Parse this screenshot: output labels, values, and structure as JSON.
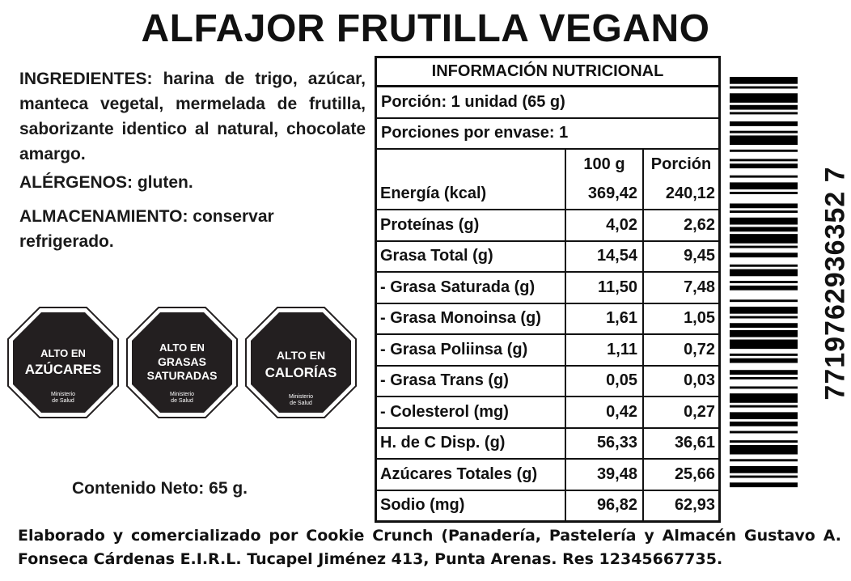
{
  "product_title": "ALFAJOR FRUTILLA VEGANO",
  "ingredients": {
    "label": "INGREDIENTES:",
    "text": "harina de trigo, azúcar, manteca vegetal, mermelada de frutilla, saborizante identico al natural, chocolate amargo."
  },
  "allergens": {
    "label": "ALÉRGENOS:",
    "text": "gluten."
  },
  "storage": {
    "label": "ALMACENAMIENTO:",
    "text": "conservar refrigerado."
  },
  "seals": [
    {
      "lines": [
        "ALTO EN",
        "AZÚCARES"
      ],
      "ministry": [
        "Ministerio",
        "de Salud"
      ]
    },
    {
      "lines": [
        "ALTO EN",
        "GRASAS",
        "SATURADAS"
      ],
      "ministry": [
        "Ministerio",
        "de Salud"
      ]
    },
    {
      "lines": [
        "ALTO EN",
        "CALORÍAS"
      ],
      "ministry": [
        "Ministerio",
        "de Salud"
      ]
    }
  ],
  "net_content": "Contenido Neto: 65 g.",
  "nutrition": {
    "title": "INFORMACIÓN NUTRICIONAL",
    "serving": "Porción: 1 unidad (65 g)",
    "servings_per_package": "Porciones por envase: 1",
    "col_100g": "100 g",
    "col_portion": "Porción",
    "rows": [
      {
        "label": "Energía (kcal)",
        "per100": "369,42",
        "portion": "240,12"
      },
      {
        "label": "Proteínas (g)",
        "per100": "4,02",
        "portion": "2,62"
      },
      {
        "label": "Grasa Total (g)",
        "per100": "14,54",
        "portion": "9,45"
      },
      {
        "label": "- Grasa Saturada (g)",
        "per100": "11,50",
        "portion": "7,48"
      },
      {
        "label": "- Grasa Monoinsa (g)",
        "per100": "1,61",
        "portion": "1,05"
      },
      {
        "label": "- Grasa Poliinsa (g)",
        "per100": "1,11",
        "portion": "0,72"
      },
      {
        "label": "- Grasa Trans (g)",
        "per100": "0,05",
        "portion": "0,03"
      },
      {
        "label": "- Colesterol (mg)",
        "per100": "0,42",
        "portion": "0,27"
      },
      {
        "label": "H. de C Disp. (g)",
        "per100": "56,33",
        "portion": "36,61"
      },
      {
        "label": "Azúcares Totales (g)",
        "per100": "39,48",
        "portion": "25,66"
      },
      {
        "label": "Sodio (mg)",
        "per100": "96,82",
        "portion": "62,93"
      }
    ]
  },
  "barcode_number": "7719762936352 7",
  "footer": "Elaborado y comercializado por Cookie Crunch (Panadería, Pastelería y Almacén Gustavo A. Fonseca Cárdenas E.I.R.L. Tucapel Jiménez 413, Punta Arenas. Res 12345667735.",
  "colors": {
    "seal_fill": "#231f20",
    "text": "#111111",
    "background": "#ffffff"
  }
}
